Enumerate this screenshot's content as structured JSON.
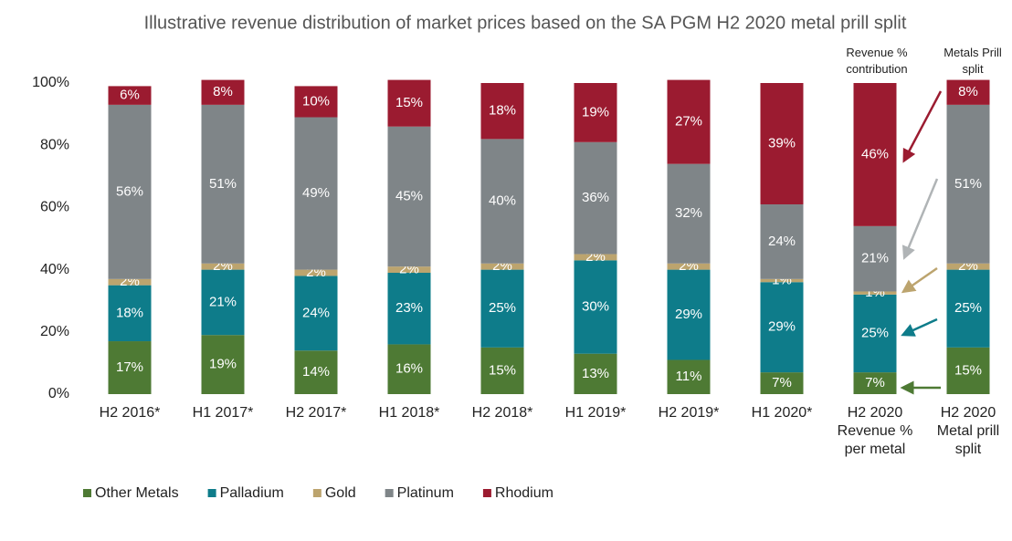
{
  "chart_data": {
    "type": "stacked_bar",
    "title": "Illustrative revenue distribution of market prices based on the SA PGM H2 2020 metal prill split",
    "annotations": [
      "Revenue % contribution",
      "Metals Prill split"
    ],
    "categories": [
      "H2 2016*",
      "H1 2017*",
      "H2 2017*",
      "H1 2018*",
      "H2 2018*",
      "H1 2019*",
      "H2 2019*",
      "H1 2020*",
      "H2 2020 Revenue % per metal",
      "H2 2020 Metal prill split"
    ],
    "series": [
      {
        "name": "Other Metals",
        "color": "#4e7a34",
        "values": [
          17,
          19,
          14,
          16,
          15,
          13,
          11,
          7,
          7,
          15
        ],
        "value_labels": [
          "17%",
          "19%",
          "14%",
          "16%",
          "15%",
          "13%",
          "11%",
          "7%",
          "7%",
          "15%"
        ]
      },
      {
        "name": "Palladium",
        "color": "#0e7c8a",
        "values": [
          18,
          21,
          24,
          23,
          25,
          30,
          29,
          29,
          25,
          25
        ],
        "value_labels": [
          "18%",
          "21%",
          "24%",
          "23%",
          "25%",
          "30%",
          "29%",
          "29%",
          "25%",
          "25%"
        ]
      },
      {
        "name": "Gold",
        "color": "#bca46e",
        "values": [
          2,
          2,
          2,
          2,
          2,
          2,
          2,
          1,
          1,
          2
        ],
        "value_labels": [
          "2%",
          "2%",
          "2%",
          "2%",
          "2%",
          "2%",
          "2%",
          "1%",
          "1%",
          "2%"
        ]
      },
      {
        "name": "Platinum",
        "color": "#7f8588",
        "values": [
          56,
          51,
          49,
          45,
          40,
          36,
          32,
          24,
          21,
          51
        ],
        "value_labels": [
          "56%",
          "51%",
          "49%",
          "45%",
          "40%",
          "36%",
          "32%",
          "24%",
          "21%",
          "51%"
        ]
      },
      {
        "name": "Rhodium",
        "color": "#9b1b30",
        "values": [
          6,
          8,
          10,
          15,
          18,
          19,
          27,
          39,
          46,
          8
        ],
        "value_labels": [
          "6%",
          "8%",
          "10%",
          "15%",
          "18%",
          "19%",
          "27%",
          "39%",
          "46%",
          "8%"
        ]
      }
    ],
    "ylim": [
      0,
      100
    ],
    "yticks": [
      {
        "value": 0,
        "label": "0%"
      },
      {
        "value": 20,
        "label": "20%"
      },
      {
        "value": 40,
        "label": "40%"
      },
      {
        "value": 60,
        "label": "60%"
      },
      {
        "value": 80,
        "label": "80%"
      },
      {
        "value": 100,
        "label": "100%"
      }
    ],
    "legend": "bottom-left"
  }
}
